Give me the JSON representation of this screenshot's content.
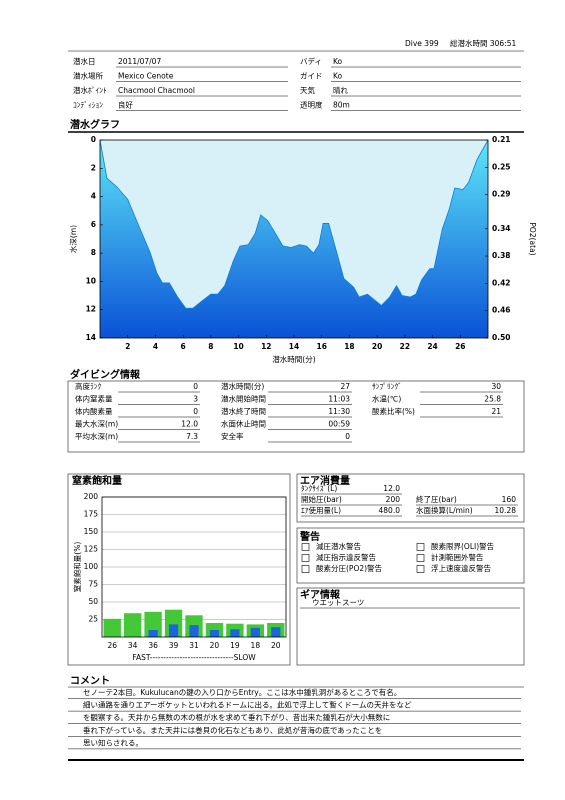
{
  "header": {
    "dive": "Dive 399",
    "total": "総潜水時間 306:51"
  },
  "info": {
    "rows": [
      [
        [
          "潜水日",
          "2011/07/07"
        ],
        [
          "バディ",
          "Ko"
        ]
      ],
      [
        [
          "潜水場所",
          "Mexico Cenote"
        ],
        [
          "ガイド",
          "Ko"
        ]
      ],
      [
        [
          "潜水ﾎﾟｲﾝﾄ",
          "Chacmool Chacmool"
        ],
        [
          "天気",
          "晴れ"
        ]
      ],
      [
        [
          "ｺﾝﾃﾞｨｼｮﾝ",
          "良好"
        ],
        [
          "透明度",
          "80m"
        ]
      ]
    ]
  },
  "chart_data": [
    {
      "type": "area",
      "title": "潜水グラフ",
      "x_label": "潜水時間(分)",
      "y_label": "水深(m)",
      "y2_label": "PO2(ata)",
      "x": [
        0,
        0.5,
        1.2,
        2,
        2.9,
        3.6,
        4.1,
        4.5,
        5,
        5.6,
        6.2,
        6.7,
        7.2,
        8,
        8.5,
        9,
        9.6,
        10.1,
        10.7,
        11.2,
        11.6,
        12.1,
        12.6,
        13.2,
        13.8,
        14.4,
        14.9,
        15.4,
        15.8,
        16.1,
        16.5,
        17.1,
        17.6,
        18.3,
        18.7,
        19.3,
        19.8,
        20.3,
        20.9,
        21.4,
        21.8,
        22.4,
        22.8,
        23.2,
        23.8,
        24.1,
        24.7,
        25.2,
        25.6,
        26.2,
        26.6,
        27.2,
        28
      ],
      "values": [
        0,
        2.7,
        3.3,
        4.2,
        6.3,
        7.9,
        9.4,
        10.1,
        10.1,
        11.1,
        11.9,
        11.9,
        11.5,
        10.9,
        10.9,
        10.3,
        8.6,
        7.5,
        7.4,
        6.6,
        5.3,
        5.7,
        6.5,
        7.5,
        7.6,
        7.4,
        7.5,
        8,
        7.4,
        5.9,
        5.9,
        8,
        9.8,
        10.4,
        11.1,
        10.9,
        11.3,
        11.7,
        11.1,
        10.3,
        11,
        11.1,
        10.9,
        9.9,
        9.1,
        9.1,
        6.3,
        4.9,
        3.4,
        3.5,
        3.0,
        1.4,
        0
      ],
      "color": "#0a7fd8",
      "background": "#d8f0f8",
      "xlim": [
        0,
        28
      ],
      "xticks": [
        2,
        4,
        6,
        8,
        10,
        12,
        14,
        16,
        18,
        20,
        22,
        24,
        26
      ],
      "ylim": [
        14,
        0
      ],
      "yticks": [
        0,
        2,
        4,
        6,
        8,
        10,
        12,
        14
      ],
      "y2lim": [
        0.5,
        0.21
      ],
      "y2ticks": [
        0.21,
        0.25,
        0.29,
        0.34,
        0.38,
        0.42,
        0.46,
        {
          "value": 0.5,
          "label": "0.50"
        }
      ]
    },
    {
      "type": "bar",
      "title": "窒素飽和量",
      "y_label": "窒素飽和量(%)",
      "x_label": "FAST-------------------------------SLOW",
      "series": [
        {
          "color": "#44c838",
          "values": [
            26,
            34,
            36,
            39,
            31,
            20,
            19,
            18,
            20
          ]
        },
        {
          "color": "#1e64dc",
          "values": [
            0,
            0,
            10,
            18,
            17,
            10,
            11,
            13,
            14
          ]
        }
      ],
      "ylim": [
        0,
        200
      ],
      "yticks": [
        25,
        50,
        75,
        100,
        125,
        150,
        175,
        200
      ],
      "grid": true
    }
  ],
  "diving_info": {
    "title": "ダイビング情報",
    "columns": [
      [
        [
          "高度ﾗﾝｸ",
          "0"
        ],
        [
          "体内窒素量",
          "3"
        ],
        [
          "体内酸素量",
          "0"
        ],
        [
          "最大水深(m)",
          "12.0"
        ],
        [
          "平均水深(m)",
          "7.3"
        ]
      ],
      [
        [
          "潜水時間(分)",
          "27"
        ],
        [
          "潜水開始時間",
          "11:03"
        ],
        [
          "潜水終了時間",
          "11:30"
        ],
        [
          "水面休止時間",
          "00:59"
        ],
        [
          "安全率",
          "0"
        ]
      ],
      [
        [
          "ｻﾝﾌﾟﾘﾝｸﾞ",
          "30"
        ],
        [
          "水温(℃)",
          "25.8"
        ],
        [
          "酸素比率(%)",
          "21"
        ]
      ]
    ]
  },
  "air": {
    "title": "エア消費量",
    "rows": [
      [
        [
          "ﾀﾝｸｻｲｽﾞ(L)",
          "12.0"
        ]
      ],
      [
        [
          "開始圧(bar)",
          "200"
        ],
        [
          "終了圧(bar)",
          "160"
        ]
      ],
      [
        [
          "ｴｱ使用量(L)",
          "480.0"
        ],
        [
          "水面換算(L/min)",
          "10.28"
        ]
      ]
    ]
  },
  "warnings": {
    "title": "警告",
    "items": [
      "減圧潜水警告",
      "酸素限界(OLI)警告",
      "減圧指示違反警告",
      "計測範囲外警告",
      "酸素分圧(PO2)警告",
      "浮上速度違反警告"
    ]
  },
  "gear": {
    "title": "ギア情報",
    "items": [
      "ウエットスーツ"
    ]
  },
  "comment": {
    "title": "コメント",
    "lines": [
      "セノーテ2本目。Kukulucanの鍵の入り口からEntry。ここは水中鍾乳洞があるところで有名。",
      "細い通路を通りエアーポケットといわれるドームに出る。此処で浮上して暫くドームの天井をなど",
      "を観察する。天井から無数の木の根が水を求めて垂れ下がり、昔出来た鍾乳石が大小無数に",
      "垂れ下がっている。また天井には巻貝の化石などもあり、此処が昔海の底であったことを",
      "思い知らされる。"
    ]
  }
}
